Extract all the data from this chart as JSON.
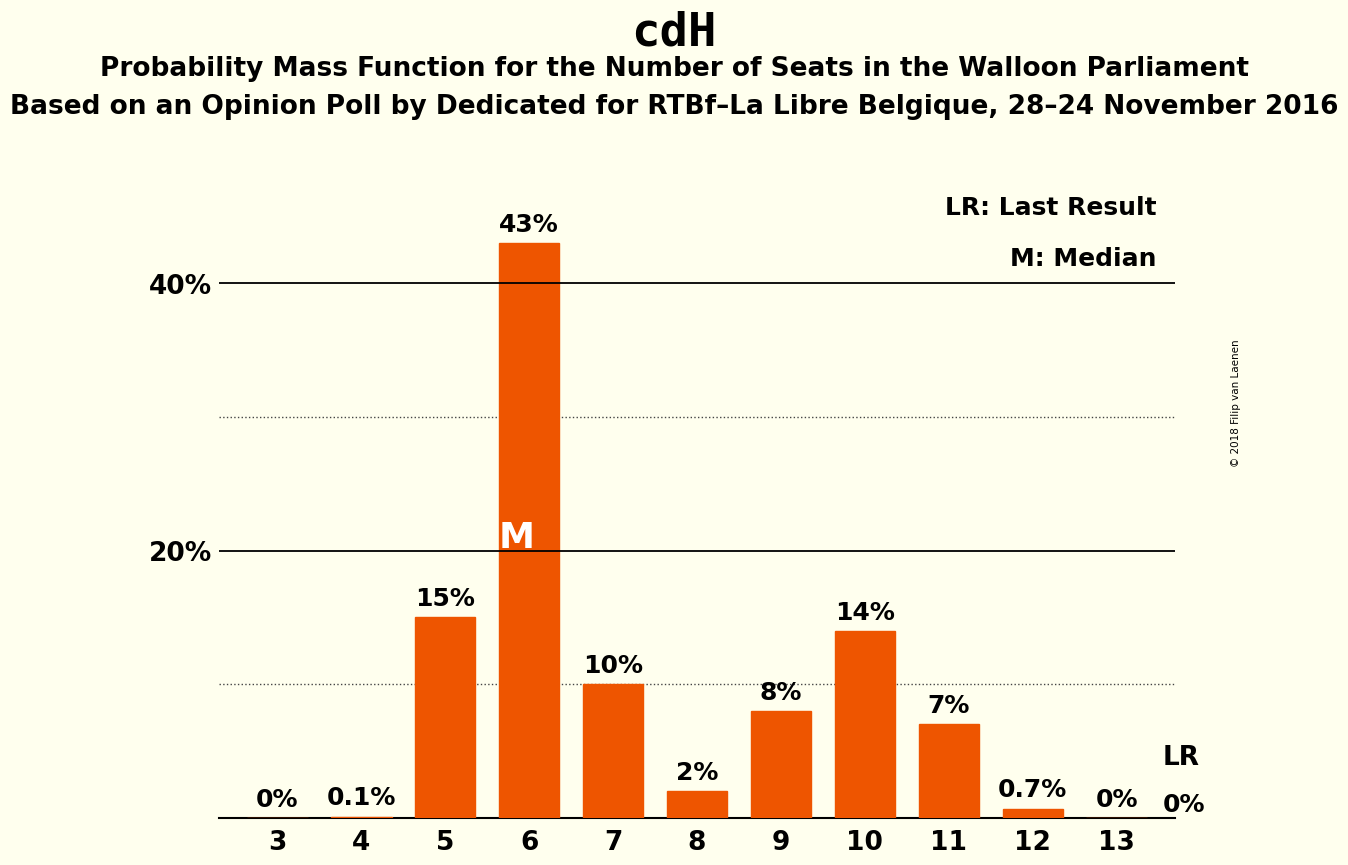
{
  "title": "cdH",
  "subtitle1": "Probability Mass Function for the Number of Seats in the Walloon Parliament",
  "subtitle2": "Based on an Opinion Poll by Dedicated for RTBf–La Libre Belgique, 28–24 November 2016",
  "copyright": "© 2018 Filip van Laenen",
  "categories": [
    3,
    4,
    5,
    6,
    7,
    8,
    9,
    10,
    11,
    12,
    13
  ],
  "values": [
    0.0,
    0.1,
    15.0,
    43.0,
    10.0,
    2.0,
    8.0,
    14.0,
    7.0,
    0.7,
    0.0
  ],
  "bar_color": "#ee5500",
  "background_color": "#ffffee",
  "median_bar": 6,
  "lr_bar": 13,
  "median_label": "M",
  "lr_label": "LR",
  "legend_lr": "LR: Last Result",
  "legend_m": "M: Median",
  "yticks": [
    20,
    40
  ],
  "dotted_yticks": [
    10,
    30
  ],
  "ylim": [
    0,
    47
  ],
  "title_fontsize": 34,
  "subtitle1_fontsize": 19,
  "subtitle2_fontsize": 19,
  "bar_label_fontsize": 18,
  "axis_tick_fontsize": 19,
  "legend_fontsize": 18,
  "median_label_fontsize": 26,
  "lr_label_fontsize": 19,
  "copyright_fontsize": 7.5,
  "solid_line_y": [
    20,
    40
  ],
  "dotted_line_y": [
    10,
    30
  ]
}
